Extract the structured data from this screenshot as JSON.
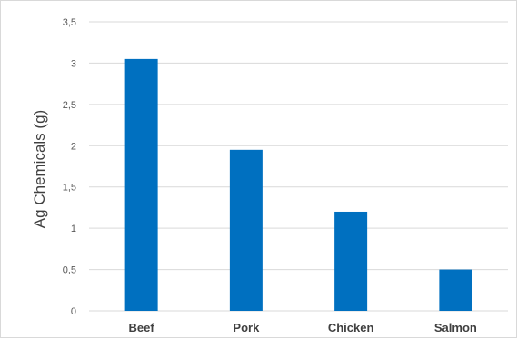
{
  "chart_data": {
    "type": "bar",
    "title": "",
    "xlabel": "",
    "ylabel": "Ag Chemicals (g)",
    "categories": [
      "Beef",
      "Pork",
      "Chicken",
      "Salmon"
    ],
    "values": [
      3.05,
      1.95,
      1.2,
      0.5
    ],
    "ylim": [
      0,
      3.5
    ],
    "y_ticks": [
      "0",
      "0,5",
      "1",
      "1,5",
      "2",
      "2,5",
      "3",
      "3,5"
    ],
    "grid": true,
    "legend": "none",
    "bar_color": "#0070c0",
    "grid_color": "#d9d9d9"
  }
}
